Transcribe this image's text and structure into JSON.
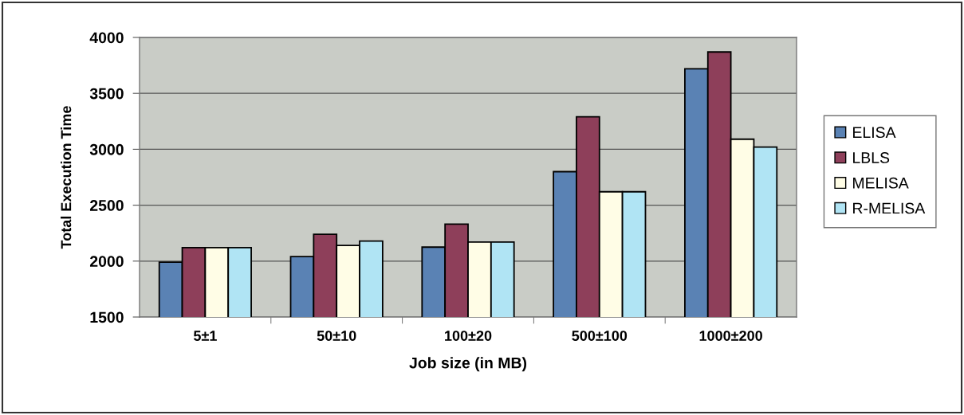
{
  "chart_data": {
    "type": "bar",
    "xlabel": "Job size (in MB)",
    "ylabel": "Total Execution Time",
    "categories": [
      "5±1",
      "50±10",
      "100±20",
      "500±100",
      "1000±200"
    ],
    "series": [
      {
        "name": "ELISA",
        "color": "#5a82b4",
        "values": [
          1990,
          2040,
          2125,
          2800,
          3720
        ]
      },
      {
        "name": "LBLS",
        "color": "#8e3f5a",
        "values": [
          2120,
          2240,
          2330,
          3290,
          3870
        ]
      },
      {
        "name": "MELISA",
        "color": "#fffde6",
        "values": [
          2120,
          2140,
          2170,
          2620,
          3090
        ]
      },
      {
        "name": "R-MELISA",
        "color": "#b0e4f4",
        "values": [
          2120,
          2180,
          2170,
          2620,
          3020
        ]
      }
    ],
    "ylim": [
      1500,
      4000
    ],
    "yticks": [
      1500,
      2000,
      2500,
      3000,
      3500,
      4000
    ],
    "grid": "y",
    "legend": "right"
  }
}
